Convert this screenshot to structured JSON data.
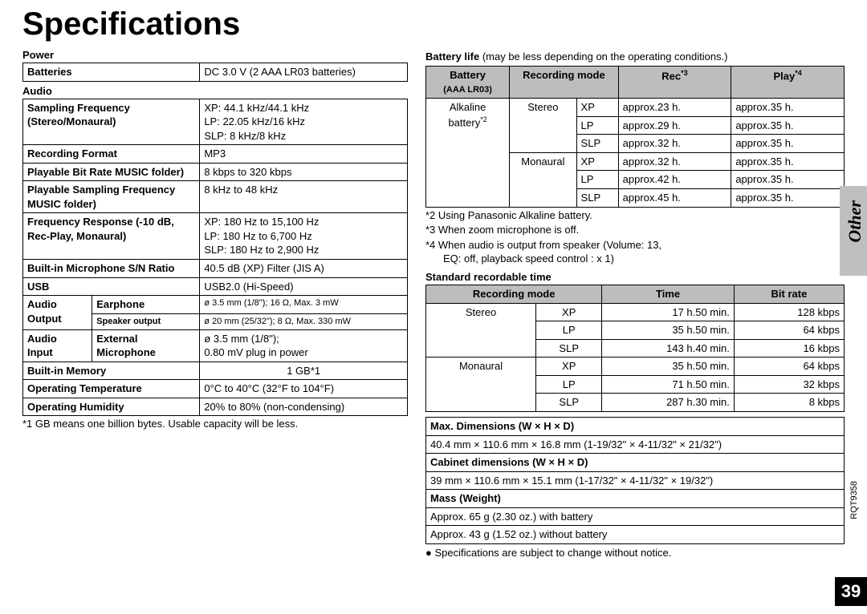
{
  "title": "Specifications",
  "side_label": "Other",
  "doc_code": "RQT9358",
  "page_num": "39",
  "left": {
    "power": {
      "header": "Power",
      "rows": [
        {
          "label": "Batteries",
          "value": "DC 3.0 V (2 AAA LR03 batteries)"
        }
      ]
    },
    "audio": {
      "header": "Audio",
      "rows": [
        {
          "label": "Sampling Frequency (Stereo/Monaural)",
          "value": "XP: 44.1 kHz/44.1 kHz\nLP: 22.05 kHz/16 kHz\nSLP: 8 kHz/8 kHz"
        },
        {
          "label": "Recording Format",
          "value": "MP3"
        },
        {
          "label": "Playable Bit Rate MUSIC folder)",
          "value": "8 kbps to 320 kbps"
        },
        {
          "label": "Playable Sampling Frequency MUSIC folder)",
          "value": "8 kHz to 48 kHz"
        },
        {
          "label": "Frequency Response (-10 dB, Rec-Play, Monaural)",
          "value": "XP: 180 Hz to 15,100 Hz\nLP: 180 Hz to 6,700 Hz\nSLP: 180 Hz to 2,900 Hz"
        },
        {
          "label": "Built-in Microphone S/N Ratio",
          "value": "40.5 dB (XP) Filter (JIS A)"
        },
        {
          "label": "USB",
          "value": "USB2.0 (Hi-Speed)"
        }
      ],
      "audio_output": {
        "group": "Audio Output",
        "rows": [
          {
            "sub": "Earphone",
            "value": "ø 3.5 mm (1/8\"); 16 Ω, Max. 3 mW"
          },
          {
            "sub": "Speaker output",
            "value": "ø 20 mm (25/32\"); 8 Ω, Max. 330 mW"
          }
        ]
      },
      "audio_input": {
        "group": "Audio Input",
        "rows": [
          {
            "sub": "External Microphone",
            "value": "ø 3.5 mm (1/8\");\n0.80 mV plug in power"
          }
        ]
      },
      "tail": [
        {
          "label": "Built-in Memory",
          "value": "1 GB*1",
          "center": true
        },
        {
          "label": "Operating Temperature",
          "value": "0°C to 40°C (32°F to 104°F)"
        },
        {
          "label": "Operating Humidity",
          "value": "20% to 80% (non-condensing)"
        }
      ]
    },
    "footnote1": "*1  GB means one billion bytes. Usable capacity will be less."
  },
  "right": {
    "battery_note": "Battery life (may be less depending on the operating conditions.)",
    "battery_life": {
      "headers": [
        "Battery (AAA LR03)",
        "Recording mode",
        "Rec*3",
        "Play*4"
      ],
      "group_label": "Alkaline battery*2",
      "rows": [
        {
          "mode_group": "Stereo",
          "mode": "XP",
          "rec": "approx.23 h.",
          "play": "approx.35 h."
        },
        {
          "mode_group": "",
          "mode": "LP",
          "rec": "approx.29 h.",
          "play": "approx.35 h."
        },
        {
          "mode_group": "",
          "mode": "SLP",
          "rec": "approx.32 h.",
          "play": "approx.35 h."
        },
        {
          "mode_group": "Monaural",
          "mode": "XP",
          "rec": "approx.32 h.",
          "play": "approx.35 h."
        },
        {
          "mode_group": "",
          "mode": "LP",
          "rec": "approx.42 h.",
          "play": "approx.35 h."
        },
        {
          "mode_group": "",
          "mode": "SLP",
          "rec": "approx.45 h.",
          "play": "approx.35 h."
        }
      ]
    },
    "footnotes": [
      "*2 Using Panasonic Alkaline battery.",
      "*3 When zoom microphone is off.",
      "*4 When audio is output from speaker (Volume: 13, EQ: off, playback speed control : x 1)"
    ],
    "recordable": {
      "header": "Standard recordable time",
      "cols": [
        "Recording mode",
        "Time",
        "Bit rate"
      ],
      "rows": [
        {
          "group": "Stereo",
          "mode": "XP",
          "time": "17 h.50 min.",
          "rate": "128 kbps"
        },
        {
          "group": "",
          "mode": "LP",
          "time": "35 h.50 min.",
          "rate": "64 kbps"
        },
        {
          "group": "",
          "mode": "SLP",
          "time": "143 h.40 min.",
          "rate": "16 kbps"
        },
        {
          "group": "Monaural",
          "mode": "XP",
          "time": "35 h.50 min.",
          "rate": "64 kbps"
        },
        {
          "group": "",
          "mode": "LP",
          "time": "71 h.50 min.",
          "rate": "32 kbps"
        },
        {
          "group": "",
          "mode": "SLP",
          "time": "287 h.30 min.",
          "rate": "8 kbps"
        }
      ]
    },
    "dimensions": {
      "max_hdr": "Max. Dimensions (W × H × D)",
      "max_val": "40.4 mm × 110.6 mm × 16.8 mm (1-19/32\" × 4-11/32\" × 21/32\")",
      "cab_hdr": "Cabinet dimensions (W × H × D)",
      "cab_val": "39 mm × 110.6 mm × 15.1 mm (1-17/32\" × 4-11/32\" × 19/32\")",
      "mass_hdr": "Mass (Weight)",
      "mass1": "Approx. 65 g (2.30 oz.) with battery",
      "mass2": "Approx. 43 g (1.52 oz.) without battery"
    },
    "change_note": "● Specifications are subject to change without notice."
  }
}
